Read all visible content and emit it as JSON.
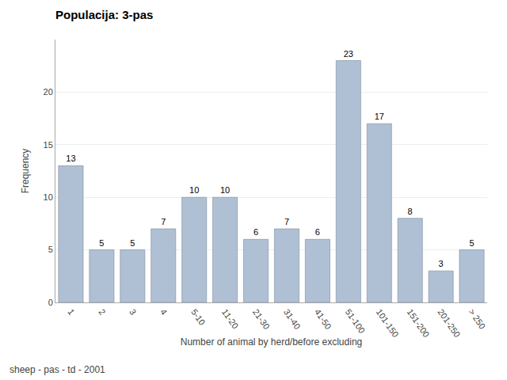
{
  "chart_data": {
    "type": "bar",
    "title": "Populacija: 3-pas",
    "footnote": "sheep - pas - td - 2001",
    "xlabel": "Number of animal by herd/before excluding",
    "ylabel": "Frequency",
    "categories": [
      "1",
      "2",
      "3",
      "4",
      "5-10",
      "11-20",
      "21-30",
      "31-40",
      "41-50",
      "51-100",
      "101-150",
      "151-200",
      "201-250",
      "> 250"
    ],
    "values": [
      13,
      5,
      5,
      7,
      10,
      10,
      6,
      7,
      6,
      23,
      17,
      8,
      3,
      5
    ],
    "color": "#b0c0d4",
    "ylim": [
      0,
      25
    ],
    "yticks": [
      0,
      5,
      10,
      15,
      20
    ],
    "grid": true,
    "data_labels": true
  }
}
